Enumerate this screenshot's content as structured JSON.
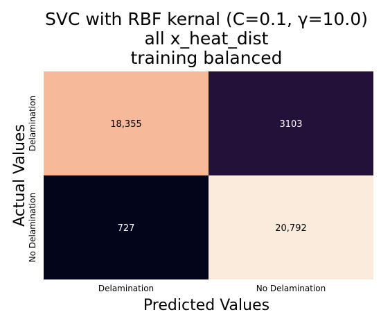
{
  "chart_data": {
    "type": "heatmap",
    "title_lines": [
      "SVC with RBF kernal (C=0.1, γ=10.0)",
      "all x_heat_dist",
      "training balanced"
    ],
    "xlabel": "Predicted Values",
    "ylabel": "Actual Values",
    "x_categories": [
      "Delamination",
      "No Delamination"
    ],
    "y_categories": [
      "Delamination",
      "No Delamination"
    ],
    "values": [
      [
        18355,
        3103
      ],
      [
        727,
        20792
      ]
    ],
    "value_labels": [
      [
        "18,355",
        "3103"
      ],
      [
        "727",
        "20,792"
      ]
    ],
    "colormap": [
      "#03051a",
      "#2b1340",
      "#6b1f56",
      "#b0245a",
      "#e13342",
      "#f37651",
      "#f5b08d",
      "#faebdd"
    ],
    "colorbar": false,
    "grid": false,
    "legend": "none"
  }
}
